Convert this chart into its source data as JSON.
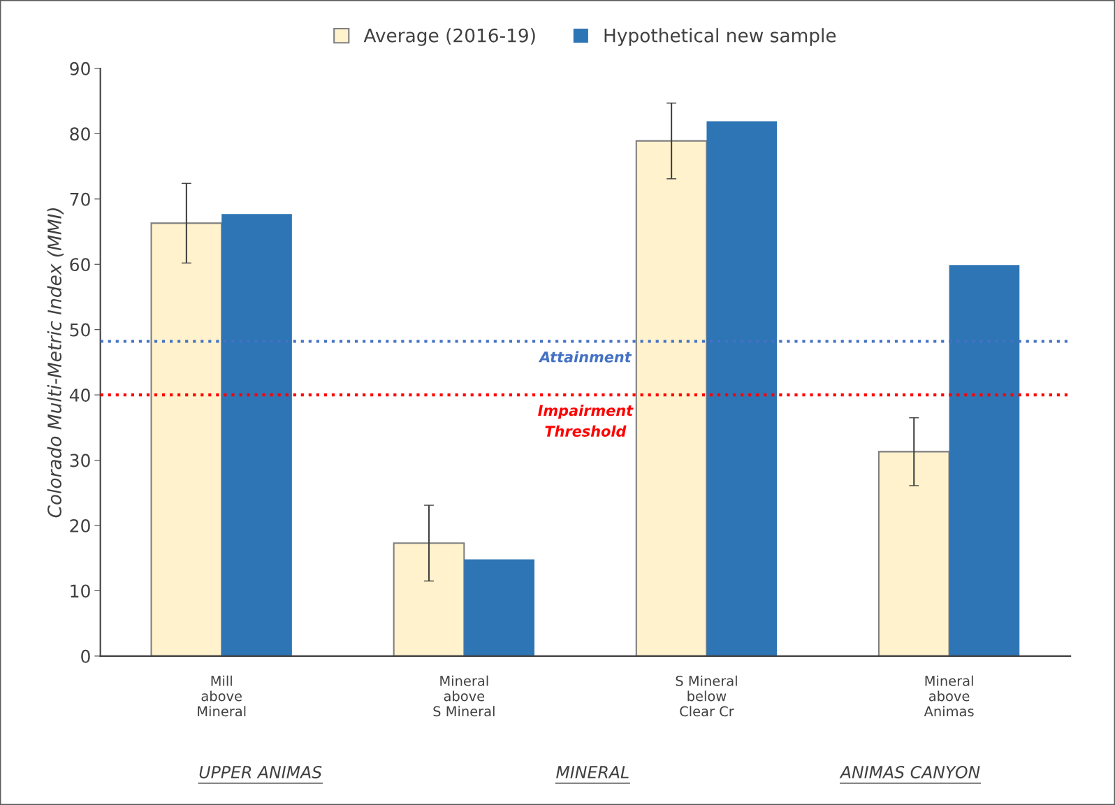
{
  "chart_data": {
    "type": "bar",
    "ylabel": "Colorado Multi-Metric Index (MMI)",
    "categories": [
      "Mill\nabove\nMineral",
      "Mineral\nabove\nS Mineral",
      "S Mineral\nbelow\nClear Cr",
      "Mineral\nabove\nAnimas"
    ],
    "series": [
      {
        "name": "Average (2016-19)",
        "color": "#fff2cc",
        "values": [
          66.3,
          17.3,
          78.9,
          31.3
        ],
        "errors": [
          6.1,
          5.8,
          5.8,
          5.2
        ]
      },
      {
        "name": "Hypothetical new sample",
        "color": "#2e75b6",
        "values": [
          67.7,
          14.8,
          81.9,
          59.9
        ]
      }
    ],
    "ylim": [
      0,
      90
    ],
    "yticks": [
      0,
      10,
      20,
      30,
      40,
      50,
      60,
      70,
      80,
      90
    ],
    "ref_lines": [
      {
        "axis": "y",
        "value": 48.2,
        "label": "Attainment",
        "color": "#4472c4",
        "line_style": "dotted"
      },
      {
        "axis": "y",
        "value": 40,
        "label": "Impairment\nThreshold",
        "color": "#ff0000",
        "line_style": "dotted"
      }
    ],
    "annotations": [
      "UPPER ANIMAS",
      "MINERAL",
      "ANIMAS CANYON"
    ],
    "grid": false,
    "legend": "top"
  }
}
